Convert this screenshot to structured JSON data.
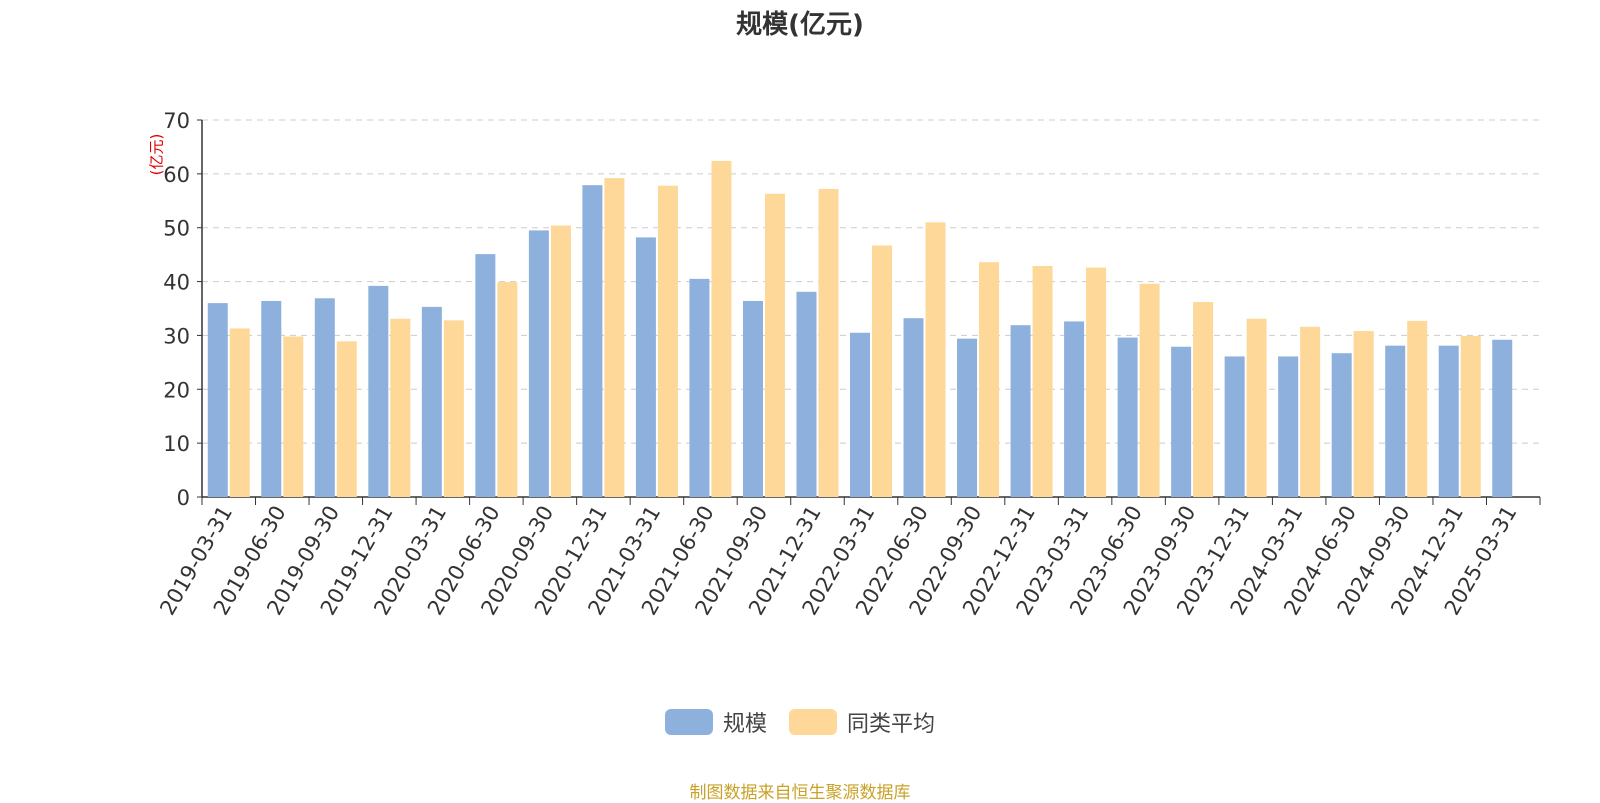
{
  "chart_data": {
    "type": "bar",
    "title": "规模(亿元)",
    "ylabel": "(亿元)",
    "ylim": [
      0,
      70
    ],
    "yticks": [
      "0",
      "10",
      "20",
      "30",
      "40",
      "50",
      "60",
      "70"
    ],
    "grid": true,
    "legend_position": "bottom",
    "categories": [
      "2019-03-31",
      "2019-06-30",
      "2019-09-30",
      "2019-12-31",
      "2020-03-31",
      "2020-06-30",
      "2020-09-30",
      "2020-12-31",
      "2021-03-31",
      "2021-06-30",
      "2021-09-30",
      "2021-12-31",
      "2022-03-31",
      "2022-06-30",
      "2022-09-30",
      "2022-12-31",
      "2023-03-31",
      "2023-06-30",
      "2023-09-30",
      "2023-12-31",
      "2024-03-31",
      "2024-06-30",
      "2024-09-30",
      "2024-12-31",
      "2025-03-31"
    ],
    "series": [
      {
        "name": "规模",
        "color": "#8eb0dd",
        "values": [
          36.0,
          36.4,
          36.9,
          39.2,
          35.3,
          45.1,
          49.5,
          57.9,
          48.2,
          40.5,
          36.4,
          38.1,
          30.5,
          33.2,
          29.4,
          31.9,
          32.6,
          29.6,
          27.9,
          26.1,
          26.1,
          26.7,
          28.1,
          28.1,
          29.2
        ]
      },
      {
        "name": "同类平均",
        "color": "#fdd898",
        "values": [
          31.3,
          29.8,
          28.9,
          33.1,
          32.8,
          39.9,
          50.4,
          59.2,
          57.8,
          62.4,
          56.3,
          57.2,
          46.7,
          51.0,
          43.6,
          42.9,
          42.6,
          39.6,
          36.2,
          33.1,
          31.6,
          30.8,
          32.7,
          29.9,
          null
        ]
      }
    ]
  },
  "source_note": "制图数据来自恒生聚源数据库"
}
